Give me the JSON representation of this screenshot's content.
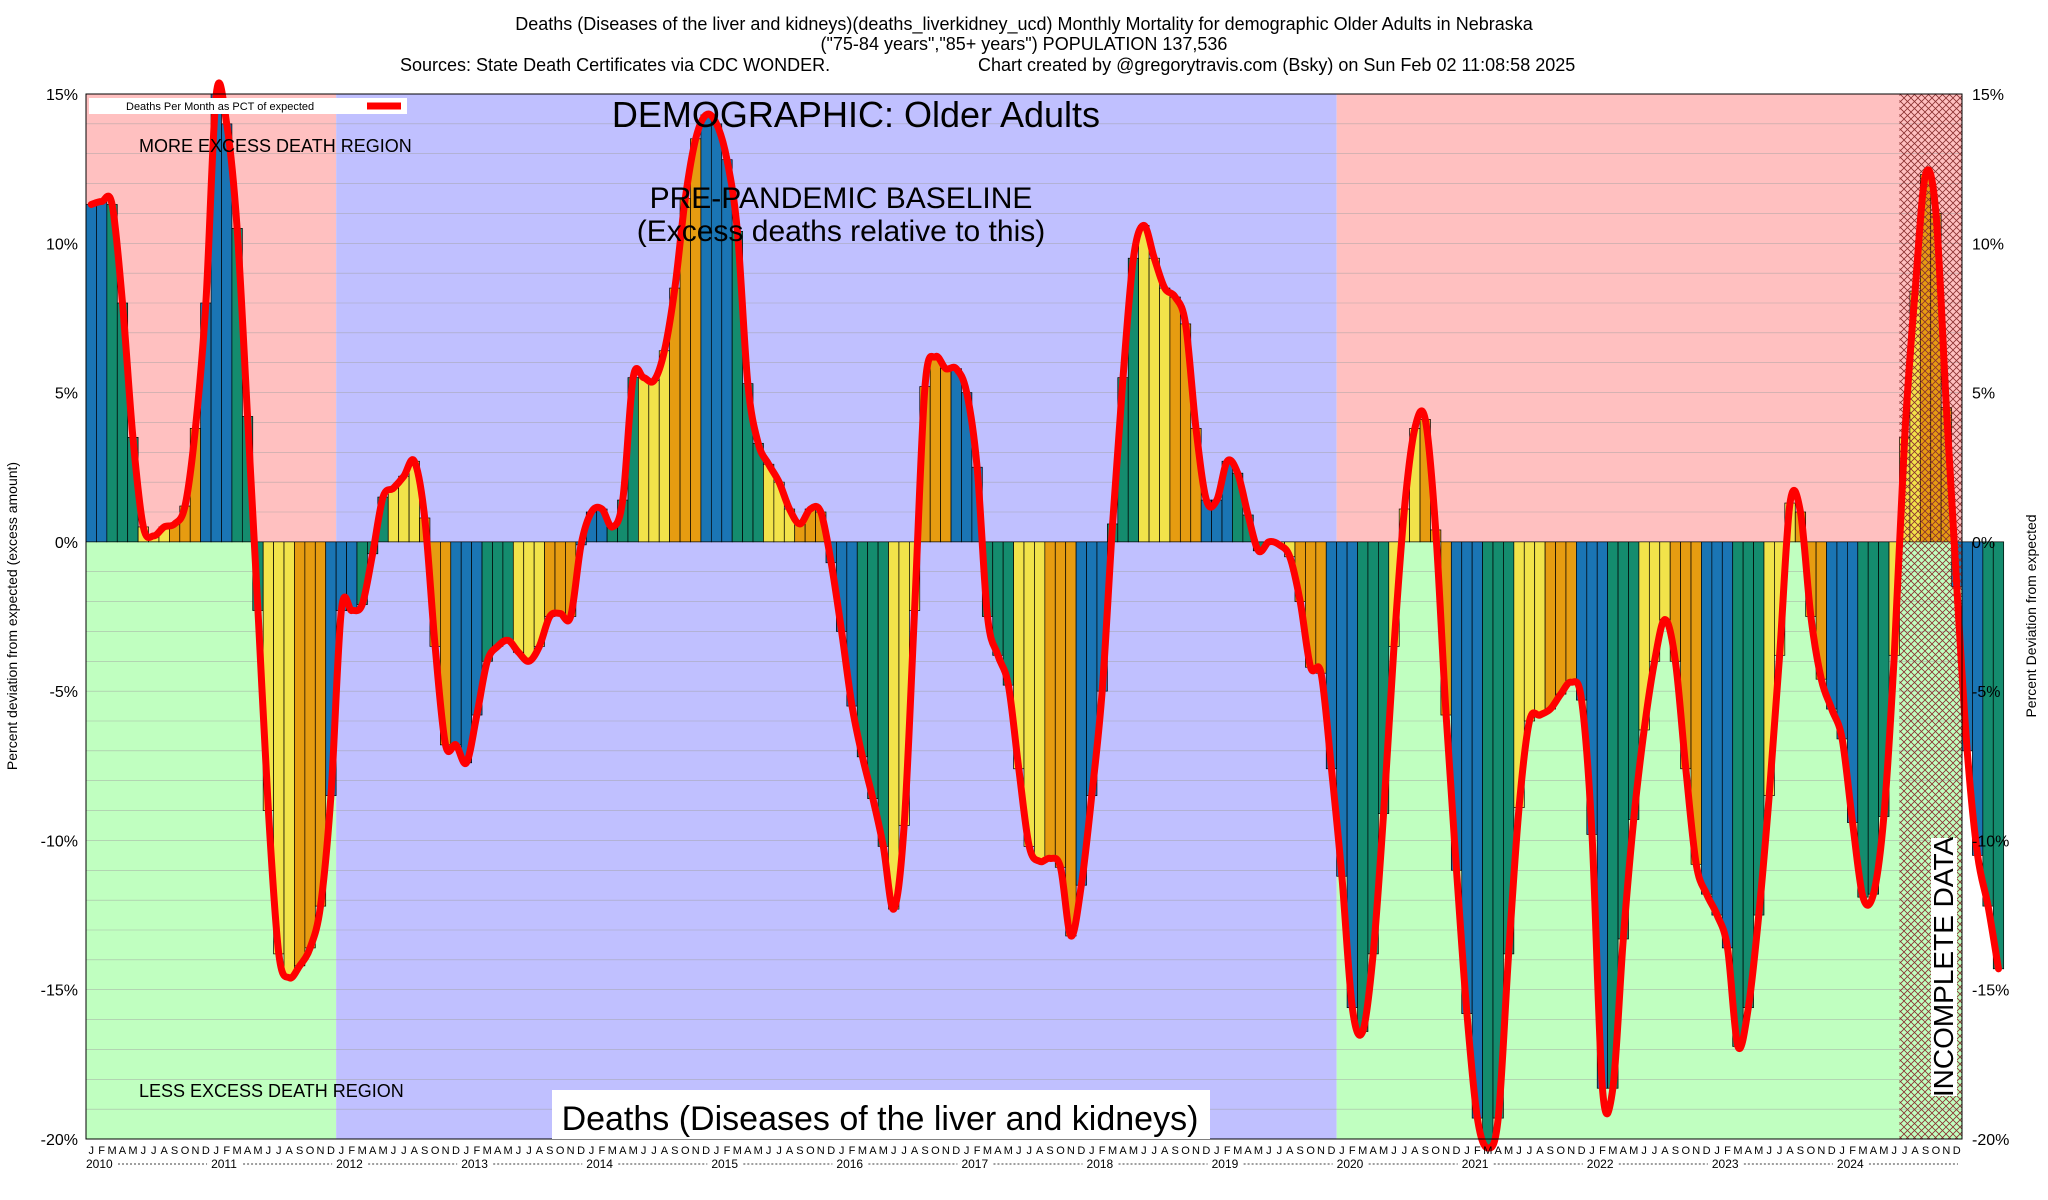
{
  "header": {
    "line1": "Deaths (Diseases of the liver and kidneys)(deaths_liverkidney_ucd) Monthly Mortality for demographic Older Adults in Nebraska",
    "line2": "(\"75-84 years\",\"85+ years\") POPULATION 137,536",
    "line3_sources": "Sources: State Death Certificates via CDC WONDER.",
    "line3_credit": "Chart created by @gregorytravis.com (Bsky) on Sun Feb 02 11:08:58 2025"
  },
  "annotations": {
    "demographic": "DEMOGRAPHIC: Older Adults",
    "baseline_1": "PRE-PANDEMIC BASELINE",
    "baseline_2": "(Excess deaths relative to this)",
    "more_excess": "MORE EXCESS DEATH REGION",
    "less_excess": "LESS EXCESS DEATH REGION",
    "cause": "Deaths (Diseases of the liver and kidneys)",
    "incomplete": "INCOMPLETE DATA"
  },
  "legend": {
    "label": "Deaths Per Month as PCT of expected",
    "line_color": "#ff0000"
  },
  "colors": {
    "excess_region": "#ffc0c0",
    "less_region": "#c0ffc0",
    "baseline_region": "#c0c0ff",
    "incomplete_hatch": "#ff0000",
    "winter": "#1a75b4",
    "spring": "#148c6e",
    "summer": "#f2e34a",
    "autumn": "#e69c11",
    "curve": "#ff0000"
  },
  "chart_data": {
    "type": "bar",
    "ylabel": "Percent deviation from expected (excess amount)",
    "ylabel_right": "Percent Deviation from expected",
    "ylim": [
      -20,
      15
    ],
    "yticks": [
      -20,
      -15,
      -10,
      -5,
      0,
      5,
      10,
      15
    ],
    "ytick_labels": [
      "-20%",
      "-15%",
      "-10%",
      "-5%",
      "0%",
      "5%",
      "10%",
      "15%"
    ],
    "years": [
      "2010",
      "2011",
      "2012",
      "2013",
      "2014",
      "2015",
      "2016",
      "2017",
      "2018",
      "2019",
      "2020",
      "2021",
      "2022",
      "2023",
      "2024"
    ],
    "month_letters": [
      "J",
      "F",
      "M",
      "A",
      "M",
      "J",
      "J",
      "A",
      "S",
      "O",
      "N",
      "D"
    ],
    "baseline_period": [
      "2012-01",
      "2019-12"
    ],
    "incomplete_period": [
      "2024-07",
      "2024-12"
    ],
    "grid": true,
    "values": [
      11.3,
      11.4,
      11.3,
      8,
      3.5,
      0.5,
      0.2,
      0.5,
      0.6,
      1.2,
      3.8,
      8,
      15,
      14,
      10.5,
      4.2,
      -2.3,
      -9,
      -13.8,
      -14.6,
      -14.2,
      -13.6,
      -12.2,
      -8.5,
      -2.3,
      -2.3,
      -2.1,
      -0.4,
      1.5,
      1.8,
      2.2,
      2.7,
      0.8,
      -3.5,
      -6.8,
      -6.8,
      -7.4,
      -5.8,
      -4,
      -3.5,
      -3.3,
      -3.7,
      -4,
      -3.5,
      -2.5,
      -2.4,
      -2.5,
      -0.1,
      1,
      1.1,
      0.5,
      1.4,
      5.5,
      5.5,
      5.4,
      6.4,
      8.5,
      11.5,
      13.5,
      14.3,
      14,
      12.8,
      10.4,
      5.3,
      3.3,
      2.6,
      2,
      1.1,
      0.6,
      1.1,
      1,
      -0.7,
      -3,
      -5.5,
      -7.2,
      -8.6,
      -10.2,
      -12.3,
      -9.5,
      -2.3,
      5.2,
      6.2,
      5.8,
      5.8,
      5,
      2.5,
      -2.5,
      -3.8,
      -4.8,
      -7.6,
      -10.2,
      -10.7,
      -10.6,
      -10.9,
      -13.2,
      -11.5,
      -8.5,
      -5,
      0.6,
      5.5,
      9.5,
      10.6,
      9.5,
      8.5,
      8.2,
      7.3,
      3.8,
      1.4,
      1.4,
      2.7,
      2.3,
      0.9,
      -0.3,
      0,
      -0.1,
      -0.5,
      -2,
      -4.2,
      -4.4,
      -7.6,
      -11.2,
      -15.6,
      -16.4,
      -13.8,
      -9.1,
      -3.5,
      1.1,
      3.8,
      4.1,
      0.4,
      -5.8,
      -11,
      -15.8,
      -19.3,
      -20.3,
      -19.3,
      -13.8,
      -8.9,
      -6,
      -5.8,
      -5.6,
      -5.1,
      -4.7,
      -5.3,
      -9.8,
      -18.3,
      -18.3,
      -13.3,
      -9.3,
      -6.3,
      -4,
      -2.6,
      -4,
      -7.6,
      -10.8,
      -11.8,
      -12.5,
      -13.6,
      -16.9,
      -15.6,
      -12.5,
      -8.5,
      -3.8,
      1.3,
      1,
      -2.5,
      -4.6,
      -5.6,
      -6.6,
      -9.4,
      -11.9,
      -11.8,
      -9.2,
      -3.8,
      3.5,
      8.4,
      12.3,
      11,
      4.5,
      -1.5,
      -7,
      -10.5,
      -12.2,
      -14.3
    ]
  }
}
